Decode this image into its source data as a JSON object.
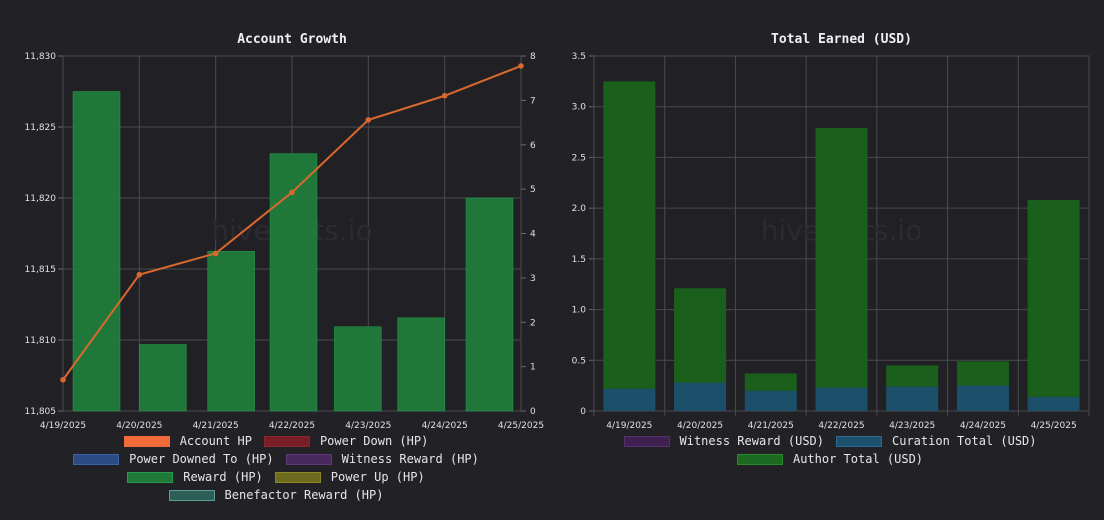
{
  "chart_data": [
    {
      "type": "bar+line",
      "title": "Account Growth",
      "watermark": "hivestats.io",
      "categories": [
        "4/19/2025",
        "4/20/2025",
        "4/21/2025",
        "4/22/2025",
        "4/23/2025",
        "4/24/2025",
        "4/25/2025"
      ],
      "grid": true,
      "y_left": {
        "range": [
          11805,
          11830
        ],
        "ticks": [
          "11,805",
          "11,810",
          "11,815",
          "11,820",
          "11,825",
          "11,830"
        ]
      },
      "y_right": {
        "range": [
          0,
          8
        ],
        "ticks": [
          "0",
          "1",
          "2",
          "3",
          "4",
          "5",
          "6",
          "7",
          "8"
        ]
      },
      "series": [
        {
          "name": "Account HP",
          "kind": "line",
          "axis": "left",
          "values": [
            11807.2,
            11814.6,
            11816.1,
            11820.4,
            11825.5,
            11827.2,
            11829.3
          ]
        },
        {
          "name": "Reward (HP)",
          "kind": "bar",
          "axis": "right",
          "values": [
            7.2,
            1.5,
            3.6,
            5.8,
            1.9,
            2.1,
            4.8
          ]
        }
      ],
      "legend": [
        {
          "label": "Account HP",
          "fill": "#f06a3a",
          "border": "#f06a3a"
        },
        {
          "label": "Power Down (HP)",
          "fill": "#7a1e26",
          "border": "#8b2530"
        },
        {
          "label": "Power Downed To (HP)",
          "fill": "#2b4b82",
          "border": "#3b62a6"
        },
        {
          "label": "Witness Reward (HP)",
          "fill": "#4a2a5e",
          "border": "#603878"
        },
        {
          "label": "Reward (HP)",
          "fill": "#1f7a3a",
          "border": "#2a9b4a"
        },
        {
          "label": "Power Up (HP)",
          "fill": "#6e6a1e",
          "border": "#8c8626"
        },
        {
          "label": "Benefactor Reward (HP)",
          "fill": "#2e5e58",
          "border": "#5a9e95"
        }
      ],
      "colors": {
        "line": "#d9682f",
        "bar": "#1f7d3b",
        "bar_border": "#2aa04c"
      }
    },
    {
      "type": "stacked-bar",
      "title": "Total Earned (USD)",
      "watermark": "hivestats.io",
      "categories": [
        "4/19/2025",
        "4/20/2025",
        "4/21/2025",
        "4/22/2025",
        "4/23/2025",
        "4/24/2025",
        "4/25/2025"
      ],
      "grid": true,
      "ylim": [
        0,
        3.5
      ],
      "y_ticks": [
        "0",
        "0.5",
        "1.0",
        "1.5",
        "2.0",
        "2.5",
        "3.0",
        "3.5"
      ],
      "series": [
        {
          "name": "Curation Total (USD)",
          "values": [
            0.22,
            0.28,
            0.2,
            0.23,
            0.24,
            0.25,
            0.14
          ]
        },
        {
          "name": "Author Total (USD)",
          "values": [
            3.03,
            0.93,
            0.17,
            2.56,
            0.21,
            0.24,
            1.94
          ]
        }
      ],
      "legend": [
        {
          "label": "Witness Reward (USD)",
          "fill": "#3e2150",
          "border": "#5a2f72"
        },
        {
          "label": "Curation Total (USD)",
          "fill": "#1d4f6e",
          "border": "#2a6a92"
        },
        {
          "label": "Author Total (USD)",
          "fill": "#1c6a22",
          "border": "#278a2e"
        }
      ],
      "colors": {
        "curation": "#1c4f69",
        "author": "#1a5f1c"
      }
    }
  ]
}
